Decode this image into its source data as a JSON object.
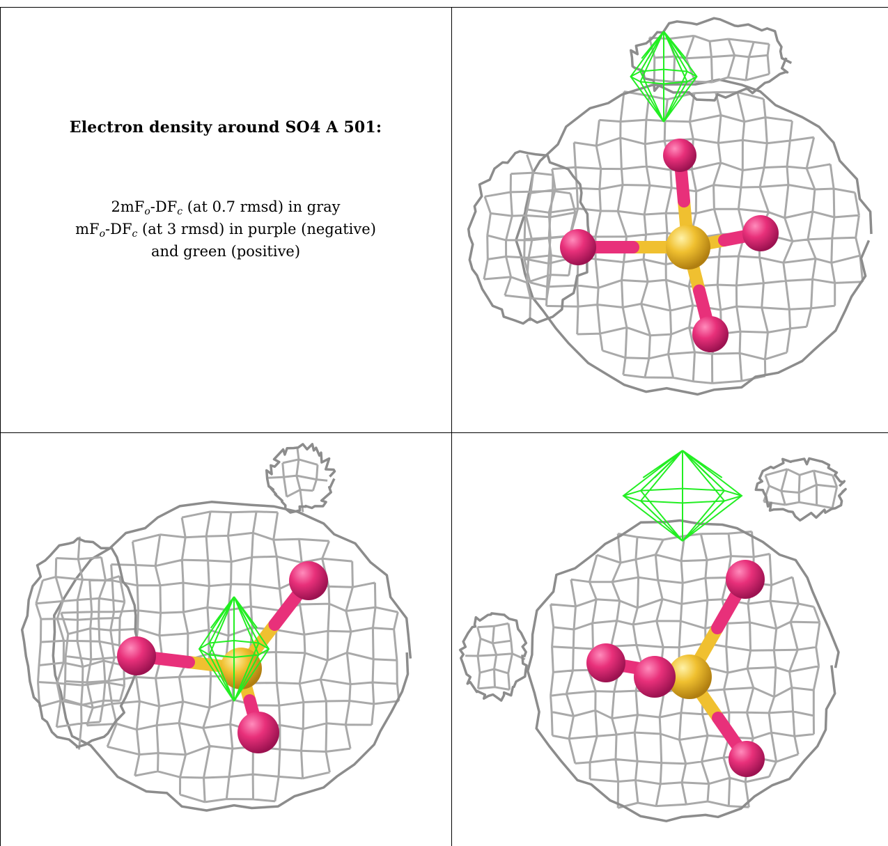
{
  "caption": {
    "title": "Electron density around SO4 A 501:",
    "lines": [
      {
        "pre": "2mF",
        "sub1": "o",
        "mid": "-DF",
        "sub2": "c",
        "post": " (at 0.7 rmsd) in gray"
      },
      {
        "pre": "mF",
        "sub1": "o",
        "mid": "-DF",
        "sub2": "c",
        "post": " (at 3 rmsd) in purple (negative)"
      },
      {
        "text": "and green (positive)"
      }
    ]
  },
  "colors": {
    "mesh_2fofc": "#a9a9a9",
    "mesh_positive": "#22ee22",
    "oxygen": "#e8307a",
    "sulfur": "#f0c030"
  },
  "panels": [
    {
      "name": "view-top-right"
    },
    {
      "name": "view-bottom-left"
    },
    {
      "name": "view-bottom-right"
    }
  ]
}
